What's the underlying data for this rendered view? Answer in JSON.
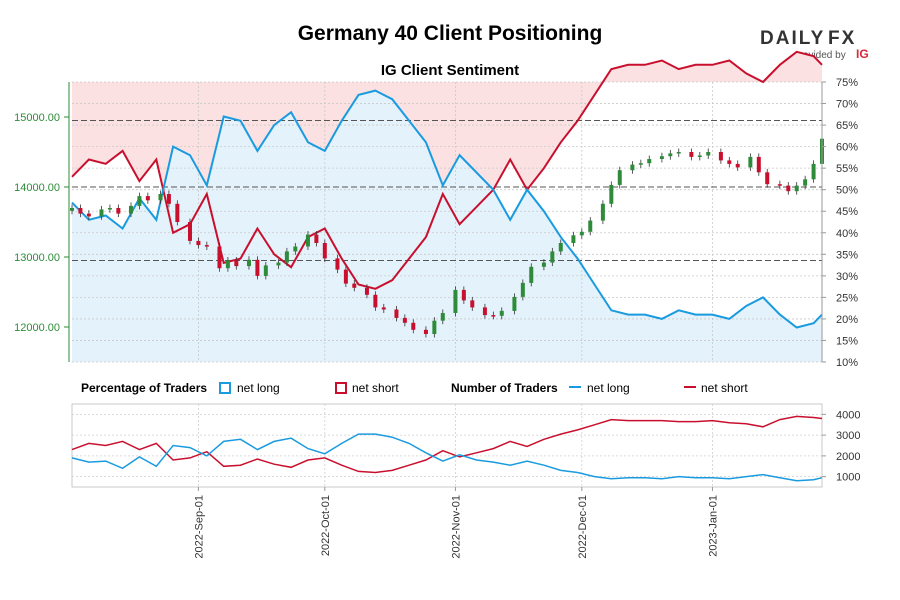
{
  "header": {
    "title": "Germany 40 Client Positioning",
    "subtitle": "IG Client Sentiment"
  },
  "logo": {
    "brand_left": "DAILY",
    "brand_right": "FX",
    "provided_by": "provided by",
    "provider": "IG",
    "brand_color": "#333333",
    "accent_color": "#d9263a"
  },
  "colors": {
    "long": "#1a9be0",
    "short": "#c8102e",
    "long_fill": "#e4f2fb",
    "short_fill": "#fbe1e1",
    "candle_up": "#2e8b3a",
    "candle_down": "#c8102e",
    "price_axis": "#2e8b3a"
  },
  "legend": {
    "pct_title": "Percentage of Traders",
    "num_title": "Number of Traders",
    "net_long": "net long",
    "net_short": "net short"
  },
  "chart_data": [
    {
      "type": "candlestick",
      "title": "IG Client Sentiment",
      "y_left_label": "",
      "ylim_left": [
        11500,
        15500
      ],
      "y_left_ticks": [
        "12000.00",
        "13000.00",
        "14000.00",
        "15000.00"
      ],
      "ylim_right": [
        10,
        75
      ],
      "y_right_ticks": [
        "10%",
        "15%",
        "20%",
        "25%",
        "30%",
        "35%",
        "40%",
        "45%",
        "50%",
        "55%",
        "60%",
        "65%",
        "70%",
        "75%"
      ],
      "reference_lines": [
        14950,
        14000,
        12950
      ],
      "x_ticks": [
        "2022-Sep-01",
        "2022-Oct-01",
        "2022-Nov-01",
        "2022-Dec-01",
        "2023-Jan-01"
      ],
      "x_range": [
        "2022-08-02",
        "2023-01-27"
      ],
      "price_close": [
        [
          "2022-08-02",
          13700
        ],
        [
          "2022-08-04",
          13620
        ],
        [
          "2022-08-06",
          13580
        ],
        [
          "2022-08-09",
          13680
        ],
        [
          "2022-08-11",
          13700
        ],
        [
          "2022-08-13",
          13620
        ],
        [
          "2022-08-16",
          13730
        ],
        [
          "2022-08-18",
          13870
        ],
        [
          "2022-08-20",
          13810
        ],
        [
          "2022-08-23",
          13900
        ],
        [
          "2022-08-25",
          13760
        ],
        [
          "2022-08-27",
          13500
        ],
        [
          "2022-08-30",
          13230
        ],
        [
          "2022-09-01",
          13170
        ],
        [
          "2022-09-03",
          13150
        ],
        [
          "2022-09-06",
          12840
        ],
        [
          "2022-09-08",
          12950
        ],
        [
          "2022-09-10",
          12870
        ],
        [
          "2022-09-13",
          12960
        ],
        [
          "2022-09-15",
          12730
        ],
        [
          "2022-09-17",
          12880
        ],
        [
          "2022-09-20",
          12920
        ],
        [
          "2022-09-22",
          13080
        ],
        [
          "2022-09-24",
          13150
        ],
        [
          "2022-09-27",
          13320
        ],
        [
          "2022-09-29",
          13200
        ],
        [
          "2022-10-01",
          12980
        ],
        [
          "2022-10-04",
          12820
        ],
        [
          "2022-10-06",
          12620
        ],
        [
          "2022-10-08",
          12560
        ],
        [
          "2022-10-11",
          12460
        ],
        [
          "2022-10-13",
          12280
        ],
        [
          "2022-10-15",
          12250
        ],
        [
          "2022-10-18",
          12130
        ],
        [
          "2022-10-20",
          12060
        ],
        [
          "2022-10-22",
          11960
        ],
        [
          "2022-10-25",
          11900
        ],
        [
          "2022-10-27",
          12090
        ],
        [
          "2022-10-29",
          12200
        ],
        [
          "2022-11-01",
          12530
        ],
        [
          "2022-11-03",
          12380
        ],
        [
          "2022-11-05",
          12280
        ],
        [
          "2022-11-08",
          12170
        ],
        [
          "2022-11-10",
          12160
        ],
        [
          "2022-11-12",
          12230
        ],
        [
          "2022-11-15",
          12430
        ],
        [
          "2022-11-17",
          12630
        ],
        [
          "2022-11-19",
          12860
        ],
        [
          "2022-11-22",
          12920
        ],
        [
          "2022-11-24",
          13080
        ],
        [
          "2022-11-26",
          13200
        ],
        [
          "2022-11-29",
          13310
        ],
        [
          "2022-12-01",
          13360
        ],
        [
          "2022-12-03",
          13520
        ],
        [
          "2022-12-06",
          13760
        ],
        [
          "2022-12-08",
          14030
        ],
        [
          "2022-12-10",
          14240
        ],
        [
          "2022-12-13",
          14320
        ],
        [
          "2022-12-15",
          14340
        ],
        [
          "2022-12-17",
          14400
        ],
        [
          "2022-12-20",
          14440
        ],
        [
          "2022-12-22",
          14480
        ],
        [
          "2022-12-24",
          14500
        ],
        [
          "2022-12-27",
          14430
        ],
        [
          "2022-12-29",
          14450
        ],
        [
          "2022-12-31",
          14500
        ],
        [
          "2023-01-03",
          14380
        ],
        [
          "2023-01-05",
          14330
        ],
        [
          "2023-01-07",
          14280
        ],
        [
          "2023-01-10",
          14430
        ],
        [
          "2023-01-12",
          14210
        ],
        [
          "2023-01-14",
          14040
        ],
        [
          "2023-01-17",
          14020
        ],
        [
          "2023-01-19",
          13940
        ],
        [
          "2023-01-21",
          14020
        ],
        [
          "2023-01-23",
          14110
        ],
        [
          "2023-01-25",
          14330
        ],
        [
          "2023-01-27",
          14690
        ]
      ],
      "net_long_pct": [
        [
          "2022-08-02",
          47
        ],
        [
          "2022-08-06",
          43
        ],
        [
          "2022-08-10",
          44
        ],
        [
          "2022-08-14",
          41
        ],
        [
          "2022-08-18",
          48
        ],
        [
          "2022-08-22",
          43
        ],
        [
          "2022-08-26",
          60
        ],
        [
          "2022-08-30",
          58
        ],
        [
          "2022-09-03",
          51
        ],
        [
          "2022-09-07",
          67
        ],
        [
          "2022-09-11",
          66
        ],
        [
          "2022-09-15",
          59
        ],
        [
          "2022-09-19",
          65
        ],
        [
          "2022-09-23",
          68
        ],
        [
          "2022-09-27",
          61
        ],
        [
          "2022-10-01",
          59
        ],
        [
          "2022-10-05",
          66
        ],
        [
          "2022-10-09",
          72
        ],
        [
          "2022-10-13",
          73
        ],
        [
          "2022-10-17",
          71
        ],
        [
          "2022-10-21",
          66
        ],
        [
          "2022-10-25",
          61
        ],
        [
          "2022-10-29",
          51
        ],
        [
          "2022-11-02",
          58
        ],
        [
          "2022-11-06",
          54
        ],
        [
          "2022-11-10",
          50
        ],
        [
          "2022-11-14",
          43
        ],
        [
          "2022-11-18",
          50
        ],
        [
          "2022-11-22",
          45
        ],
        [
          "2022-11-26",
          39
        ],
        [
          "2022-11-30",
          34
        ],
        [
          "2022-12-04",
          28
        ],
        [
          "2022-12-08",
          22
        ],
        [
          "2022-12-12",
          21
        ],
        [
          "2022-12-16",
          21
        ],
        [
          "2022-12-20",
          20
        ],
        [
          "2022-12-24",
          22
        ],
        [
          "2022-12-28",
          21
        ],
        [
          "2023-01-01",
          21
        ],
        [
          "2023-01-05",
          20
        ],
        [
          "2023-01-09",
          23
        ],
        [
          "2023-01-13",
          25
        ],
        [
          "2023-01-17",
          21
        ],
        [
          "2023-01-21",
          18
        ],
        [
          "2023-01-25",
          19
        ],
        [
          "2023-01-27",
          21
        ]
      ],
      "net_short_pct": [
        [
          "2022-08-02",
          53
        ],
        [
          "2022-08-06",
          57
        ],
        [
          "2022-08-10",
          56
        ],
        [
          "2022-08-14",
          59
        ],
        [
          "2022-08-18",
          52
        ],
        [
          "2022-08-22",
          57
        ],
        [
          "2022-08-26",
          40
        ],
        [
          "2022-08-30",
          42
        ],
        [
          "2022-09-03",
          49
        ],
        [
          "2022-09-07",
          33
        ],
        [
          "2022-09-11",
          34
        ],
        [
          "2022-09-15",
          41
        ],
        [
          "2022-09-19",
          35
        ],
        [
          "2022-09-23",
          32
        ],
        [
          "2022-09-27",
          39
        ],
        [
          "2022-10-01",
          41
        ],
        [
          "2022-10-05",
          34
        ],
        [
          "2022-10-09",
          28
        ],
        [
          "2022-10-13",
          27
        ],
        [
          "2022-10-17",
          29
        ],
        [
          "2022-10-21",
          34
        ],
        [
          "2022-10-25",
          39
        ],
        [
          "2022-10-29",
          49
        ],
        [
          "2022-11-02",
          42
        ],
        [
          "2022-11-06",
          46
        ],
        [
          "2022-11-10",
          50
        ],
        [
          "2022-11-14",
          57
        ],
        [
          "2022-11-18",
          50
        ],
        [
          "2022-11-22",
          55
        ],
        [
          "2022-11-26",
          61
        ],
        [
          "2022-11-30",
          66
        ],
        [
          "2022-12-04",
          72
        ],
        [
          "2022-12-08",
          78
        ],
        [
          "2022-12-12",
          79
        ],
        [
          "2022-12-16",
          79
        ],
        [
          "2022-12-20",
          80
        ],
        [
          "2022-12-24",
          78
        ],
        [
          "2022-12-28",
          79
        ],
        [
          "2023-01-01",
          79
        ],
        [
          "2023-01-05",
          80
        ],
        [
          "2023-01-09",
          77
        ],
        [
          "2023-01-13",
          75
        ],
        [
          "2023-01-17",
          79
        ],
        [
          "2023-01-21",
          82
        ],
        [
          "2023-01-25",
          81
        ],
        [
          "2023-01-27",
          79
        ]
      ]
    },
    {
      "type": "line",
      "title": "Number of Traders",
      "ylim": [
        500,
        4500
      ],
      "y_ticks": [
        "1000",
        "2000",
        "3000",
        "4000"
      ],
      "net_long": [
        [
          "2022-08-02",
          1900
        ],
        [
          "2022-08-06",
          1700
        ],
        [
          "2022-08-10",
          1750
        ],
        [
          "2022-08-14",
          1400
        ],
        [
          "2022-08-18",
          1950
        ],
        [
          "2022-08-22",
          1500
        ],
        [
          "2022-08-26",
          2500
        ],
        [
          "2022-08-30",
          2400
        ],
        [
          "2022-09-03",
          2000
        ],
        [
          "2022-09-07",
          2700
        ],
        [
          "2022-09-11",
          2800
        ],
        [
          "2022-09-15",
          2300
        ],
        [
          "2022-09-19",
          2700
        ],
        [
          "2022-09-23",
          2850
        ],
        [
          "2022-09-27",
          2350
        ],
        [
          "2022-10-01",
          2100
        ],
        [
          "2022-10-05",
          2600
        ],
        [
          "2022-10-09",
          3050
        ],
        [
          "2022-10-13",
          3050
        ],
        [
          "2022-10-17",
          2900
        ],
        [
          "2022-10-21",
          2600
        ],
        [
          "2022-10-25",
          2150
        ],
        [
          "2022-10-29",
          1750
        ],
        [
          "2022-11-02",
          2050
        ],
        [
          "2022-11-06",
          1800
        ],
        [
          "2022-11-10",
          1700
        ],
        [
          "2022-11-14",
          1550
        ],
        [
          "2022-11-18",
          1750
        ],
        [
          "2022-11-22",
          1550
        ],
        [
          "2022-11-26",
          1300
        ],
        [
          "2022-11-30",
          1200
        ],
        [
          "2022-12-04",
          1000
        ],
        [
          "2022-12-08",
          900
        ],
        [
          "2022-12-12",
          950
        ],
        [
          "2022-12-16",
          950
        ],
        [
          "2022-12-20",
          900
        ],
        [
          "2022-12-24",
          1000
        ],
        [
          "2022-12-28",
          950
        ],
        [
          "2023-01-01",
          950
        ],
        [
          "2023-01-05",
          900
        ],
        [
          "2023-01-09",
          1000
        ],
        [
          "2023-01-13",
          1100
        ],
        [
          "2023-01-17",
          950
        ],
        [
          "2023-01-21",
          800
        ],
        [
          "2023-01-25",
          850
        ],
        [
          "2023-01-27",
          950
        ]
      ],
      "net_short": [
        [
          "2022-08-02",
          2300
        ],
        [
          "2022-08-06",
          2600
        ],
        [
          "2022-08-10",
          2500
        ],
        [
          "2022-08-14",
          2700
        ],
        [
          "2022-08-18",
          2300
        ],
        [
          "2022-08-22",
          2600
        ],
        [
          "2022-08-26",
          1800
        ],
        [
          "2022-08-30",
          1900
        ],
        [
          "2022-09-03",
          2200
        ],
        [
          "2022-09-07",
          1500
        ],
        [
          "2022-09-11",
          1550
        ],
        [
          "2022-09-15",
          1850
        ],
        [
          "2022-09-19",
          1600
        ],
        [
          "2022-09-23",
          1450
        ],
        [
          "2022-09-27",
          1800
        ],
        [
          "2022-10-01",
          1900
        ],
        [
          "2022-10-05",
          1550
        ],
        [
          "2022-10-09",
          1250
        ],
        [
          "2022-10-13",
          1200
        ],
        [
          "2022-10-17",
          1300
        ],
        [
          "2022-10-21",
          1550
        ],
        [
          "2022-10-25",
          1800
        ],
        [
          "2022-10-29",
          2250
        ],
        [
          "2022-11-02",
          1950
        ],
        [
          "2022-11-06",
          2150
        ],
        [
          "2022-11-10",
          2350
        ],
        [
          "2022-11-14",
          2700
        ],
        [
          "2022-11-18",
          2450
        ],
        [
          "2022-11-22",
          2800
        ],
        [
          "2022-11-26",
          3050
        ],
        [
          "2022-11-30",
          3250
        ],
        [
          "2022-12-04",
          3500
        ],
        [
          "2022-12-08",
          3750
        ],
        [
          "2022-12-12",
          3700
        ],
        [
          "2022-12-16",
          3700
        ],
        [
          "2022-12-20",
          3700
        ],
        [
          "2022-12-24",
          3650
        ],
        [
          "2022-12-28",
          3650
        ],
        [
          "2023-01-01",
          3700
        ],
        [
          "2023-01-05",
          3600
        ],
        [
          "2023-01-09",
          3550
        ],
        [
          "2023-01-13",
          3400
        ],
        [
          "2023-01-17",
          3750
        ],
        [
          "2023-01-21",
          3900
        ],
        [
          "2023-01-25",
          3850
        ],
        [
          "2023-01-27",
          3800
        ]
      ]
    }
  ]
}
